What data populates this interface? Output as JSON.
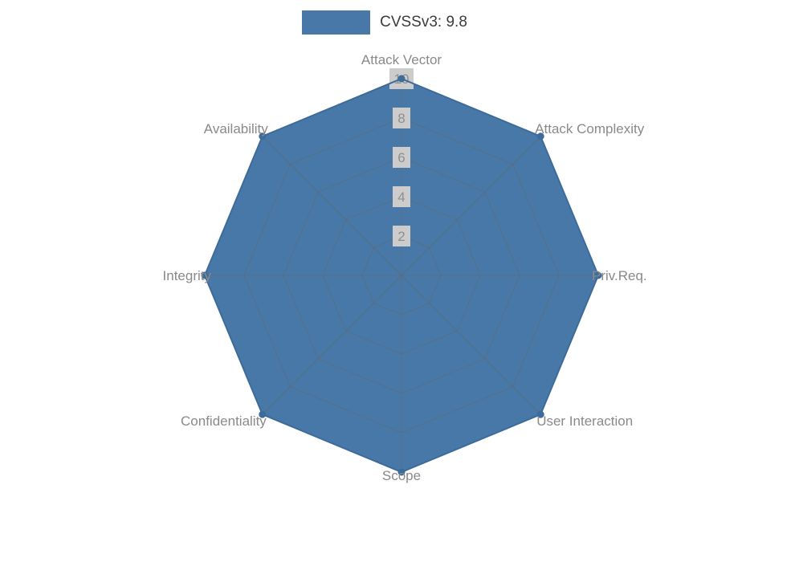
{
  "chart_data": {
    "type": "radar",
    "title": "",
    "categories": [
      "Attack Vector",
      "Attack Complexity",
      "Priv.Req.",
      "User Interaction",
      "Scope",
      "Confidentiality",
      "Integrity",
      "Availability"
    ],
    "series": [
      {
        "name": "CVSSv3: 9.8",
        "values": [
          10,
          10,
          10,
          10,
          10,
          10,
          10,
          10
        ]
      }
    ],
    "radial_ticks": [
      2,
      4,
      6,
      8,
      10
    ],
    "range": [
      0,
      10
    ],
    "angle_start": "top",
    "direction": "clockwise",
    "grid": true,
    "legend_position": "top-center",
    "colors": {
      "fill": "#4878a8",
      "edge": "#3d6b9a",
      "marker": "#3d6b9a",
      "grid_line": "#666666",
      "axis_label": "#8a8a8a",
      "tick_label": "#8f8f8f",
      "tick_box": "#cccccc",
      "legend_text": "#3c3c3c",
      "background": "#ffffff"
    }
  }
}
